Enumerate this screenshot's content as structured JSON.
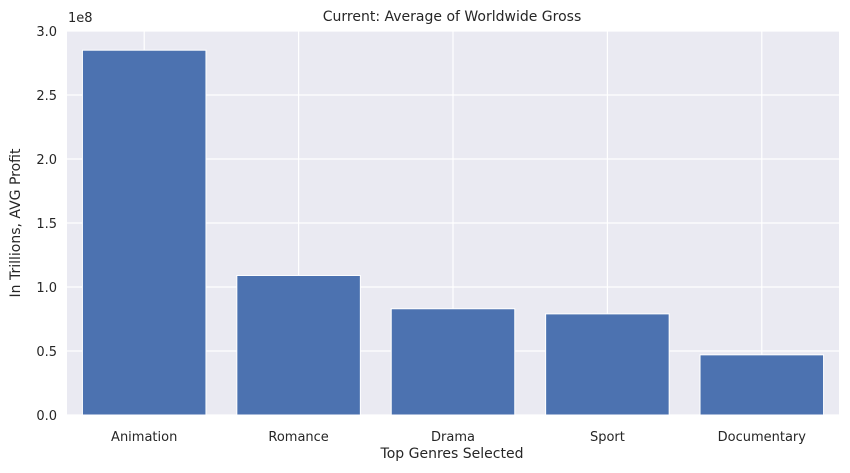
{
  "chart_data": {
    "type": "bar",
    "title": "Current: Average of Worldwide Gross",
    "xlabel": "Top Genres Selected",
    "ylabel": "In Trillions, AVG Profit",
    "categories": [
      "Animation",
      "Romance",
      "Drama",
      "Sport",
      "Documentary"
    ],
    "values": [
      285000000,
      109000000,
      83000000,
      79000000,
      47000000
    ],
    "ylim": [
      0,
      300000000
    ],
    "yticks": [
      0,
      50000000,
      100000000,
      150000000,
      200000000,
      250000000,
      300000000
    ],
    "ytick_labels": [
      "0.0",
      "0.5",
      "1.0",
      "1.5",
      "2.0",
      "2.5",
      "3.0"
    ],
    "offset_text": "1e8",
    "bar_color": "#4c72b0",
    "background_color": "#eaeaf2",
    "grid": true
  }
}
